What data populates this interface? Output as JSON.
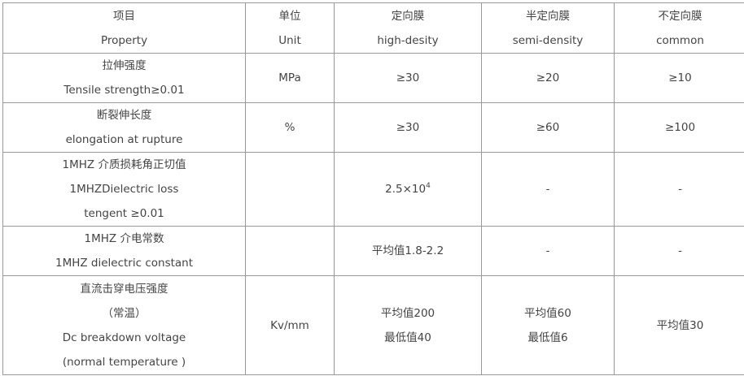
{
  "table": {
    "rows": [
      [
        [
          "项目",
          "Property"
        ],
        [
          "单位",
          "Unit"
        ],
        [
          "定向膜",
          "high-desity"
        ],
        [
          "半定向膜",
          "semi-density"
        ],
        [
          "不定向膜",
          "common"
        ]
      ],
      [
        [
          "拉伸强度",
          "Tensile strength≥0.01"
        ],
        [
          "MPa"
        ],
        [
          "≥30"
        ],
        [
          "≥20"
        ],
        [
          "≥10"
        ]
      ],
      [
        [
          "断裂伸长度",
          "elongation at rupture"
        ],
        [
          "%"
        ],
        [
          "≥30"
        ],
        [
          "≥60"
        ],
        [
          "≥100"
        ]
      ],
      [
        [
          "1MHZ 介质损耗角正切值",
          "1MHZDielectric loss",
          "tengent ≥0.01"
        ],
        [],
        [
          "2.5×10"
        ],
        [
          "-"
        ],
        [
          "-"
        ]
      ],
      [
        [
          "1MHZ 介电常数",
          "1MHZ dielectric constant"
        ],
        [],
        [
          "平均值1.8-2.2"
        ],
        [
          "-"
        ],
        [
          "-"
        ]
      ],
      [
        [
          "直流击穿电压强度",
          "（常温）",
          "Dc breakdown voltage",
          "(normal temperature )"
        ],
        [
          "Kv/mm"
        ],
        [
          "平均值200",
          "最低值40"
        ],
        [
          "平均值60",
          "最低值6"
        ],
        [
          "平均值30"
        ]
      ]
    ],
    "superscripts": {
      "3-2": "4"
    }
  },
  "colors": {
    "text": "#444444",
    "border": "#9a9a9a"
  }
}
